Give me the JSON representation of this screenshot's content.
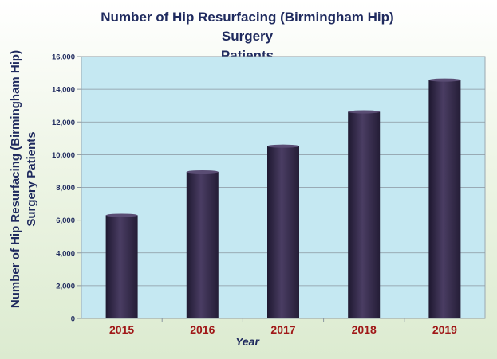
{
  "chart_data": {
    "type": "bar",
    "title_line1": "Number of Hip Resurfacing (Birmingham Hip) Surgery",
    "title_line2": "Patients",
    "ylabel": "Number of Hip Resurfacing (Birmingham Hip) Surgery Patients",
    "xlabel": "Year",
    "categories": [
      "2015",
      "2016",
      "2017",
      "2018",
      "2019"
    ],
    "values": [
      6300,
      8950,
      10520,
      12620,
      14560
    ],
    "ylim": [
      0,
      16000
    ],
    "yticks": [
      0,
      2000,
      4000,
      6000,
      8000,
      10000,
      12000,
      14000,
      16000
    ],
    "ytick_labels": [
      "0",
      "2,000",
      "4,000",
      "6,000",
      "8,000",
      "10,000",
      "12,000",
      "14,000",
      "16,000"
    ],
    "grid": true,
    "colors": {
      "plot_background": "#c5e8f2",
      "bar": "#3a2f4f",
      "category_label": "#a01818",
      "text": "#1f2a5e"
    }
  }
}
